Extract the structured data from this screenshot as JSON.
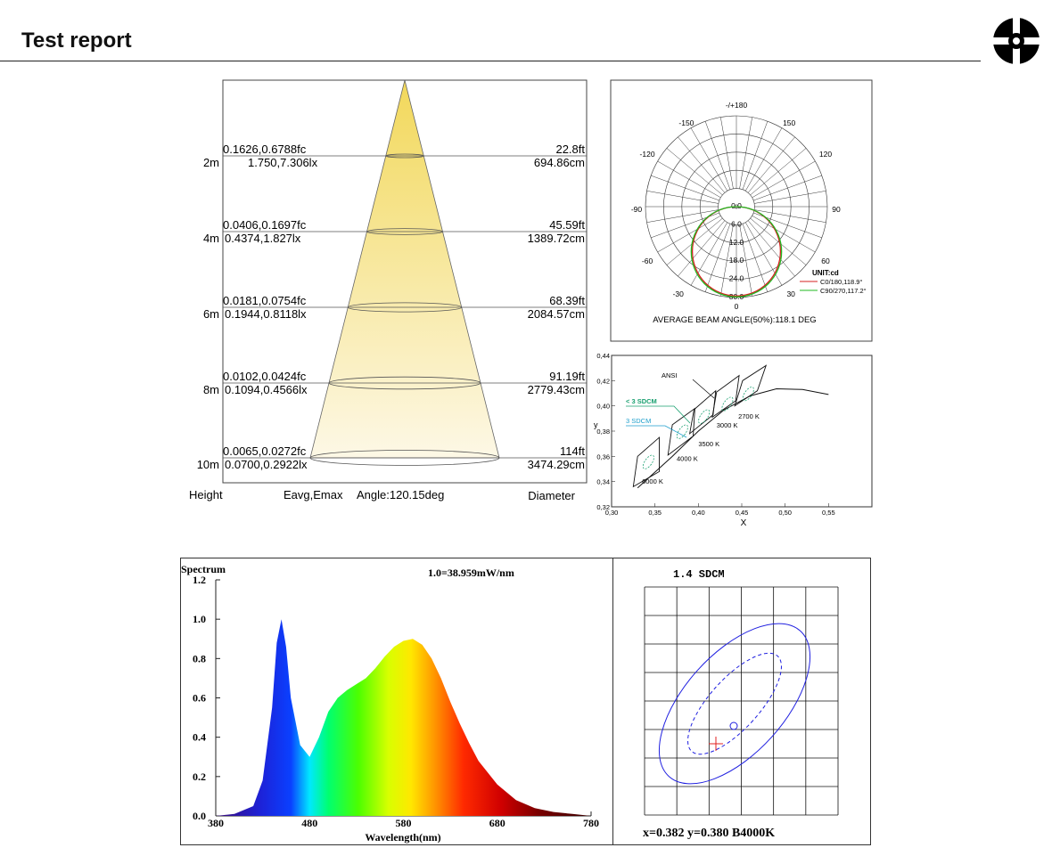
{
  "header": {
    "title": "Test report"
  },
  "chart_data": [
    {
      "type": "table",
      "name_hint": "illuminance-cone",
      "angle_label": "Angle:120.15deg",
      "column_labels": {
        "height": "Height",
        "eavg_emax": "Eavg,Emax",
        "diameter": "Diameter"
      },
      "rows": [
        {
          "height": "2m",
          "fc": "0.1626,0.6788fc",
          "lx": "1.750,7.306lx",
          "ft": "22.8ft",
          "cm": "694.86cm"
        },
        {
          "height": "4m",
          "fc": "0.0406,0.1697fc",
          "lx": "0.4374,1.827lx",
          "ft": "45.59ft",
          "cm": "1389.72cm"
        },
        {
          "height": "6m",
          "fc": "0.0181,0.0754fc",
          "lx": "0.1944,0.8118lx",
          "ft": "68.39ft",
          "cm": "2084.57cm"
        },
        {
          "height": "8m",
          "fc": "0.0102,0.0424fc",
          "lx": "0.1094,0.4566lx",
          "ft": "91.19ft",
          "cm": "2779.43cm"
        },
        {
          "height": "10m",
          "fc": "0.0065,0.0272fc",
          "lx": "0.0700,0.2922lx",
          "ft": "114ft",
          "cm": "3474.29cm"
        }
      ]
    },
    {
      "type": "line",
      "name_hint": "polar-distribution",
      "angle_labels": [
        "-/+180",
        "-150",
        "150",
        "-120",
        "120",
        "-90",
        "90",
        "-60",
        "60",
        "-30",
        "30",
        "0"
      ],
      "radial_labels": [
        "0.0",
        "6.0",
        "12.0",
        "18.0",
        "24.0",
        "30.0"
      ],
      "unit": "UNIT:cd",
      "series": [
        {
          "name": "C0/180,118.9°",
          "color": "#d62020",
          "peak_cd": 29.5
        },
        {
          "name": "C90/270,117.2°",
          "color": "#22b822",
          "peak_cd": 29.8
        }
      ],
      "footer": "AVERAGE BEAM ANGLE(50%):118.1 DEG"
    },
    {
      "type": "scatter",
      "name_hint": "ansi-chromaticity",
      "xlabel": "X",
      "ylabel": "y",
      "xlim": [
        0.3,
        0.6
      ],
      "ylim": [
        0.32,
        0.44
      ],
      "x_ticks": [
        "0,30",
        "0,35",
        "0,40",
        "0,45",
        "0,50",
        "0,55"
      ],
      "y_ticks": [
        "0,32",
        "0,34",
        "0,36",
        "0,38",
        "0,40",
        "0,42",
        "0,44"
      ],
      "annotations": [
        "ANSI",
        "< 3 SDCM",
        "3 SDCM"
      ],
      "cct_labels": [
        "6000 K",
        "4000 K",
        "3500 K",
        "3000 K",
        "2700 K"
      ],
      "points": [
        {
          "cct": 6000,
          "x": 0.3425,
          "y": 0.3555
        },
        {
          "cct": 4000,
          "x": 0.3815,
          "y": 0.3795
        },
        {
          "cct": 3500,
          "x": 0.4065,
          "y": 0.3915
        },
        {
          "cct": 3000,
          "x": 0.4335,
          "y": 0.4015
        },
        {
          "cct": 2700,
          "x": 0.4575,
          "y": 0.4095
        }
      ]
    },
    {
      "type": "area",
      "name_hint": "spectrum",
      "title": "Spectrum",
      "scale_label": "1.0=38.959mW/nm",
      "xlabel": "Wavelength(nm)",
      "xlim": [
        380,
        780
      ],
      "ylim": [
        0,
        1.2
      ],
      "x_ticks": [
        "380",
        "480",
        "580",
        "680",
        "780"
      ],
      "y_ticks": [
        "0.0",
        "0.2",
        "0.4",
        "0.6",
        "0.8",
        "1.0",
        "1.2"
      ],
      "x": [
        380,
        400,
        420,
        430,
        440,
        445,
        450,
        455,
        460,
        470,
        480,
        490,
        500,
        510,
        520,
        530,
        540,
        550,
        560,
        570,
        580,
        590,
        600,
        610,
        620,
        630,
        640,
        650,
        660,
        680,
        700,
        720,
        740,
        760,
        780
      ],
      "values": [
        0.0,
        0.01,
        0.05,
        0.18,
        0.55,
        0.88,
        1.0,
        0.86,
        0.6,
        0.36,
        0.3,
        0.4,
        0.53,
        0.6,
        0.64,
        0.67,
        0.7,
        0.75,
        0.81,
        0.86,
        0.89,
        0.9,
        0.87,
        0.8,
        0.7,
        0.58,
        0.47,
        0.37,
        0.28,
        0.16,
        0.08,
        0.04,
        0.02,
        0.01,
        0.0
      ]
    },
    {
      "type": "scatter",
      "name_hint": "sdcm-ellipse",
      "title": "1.4 SDCM",
      "readout": "x=0.382 y=0.380 B4000K",
      "measured": {
        "x": 0.382,
        "y": 0.38
      }
    }
  ]
}
